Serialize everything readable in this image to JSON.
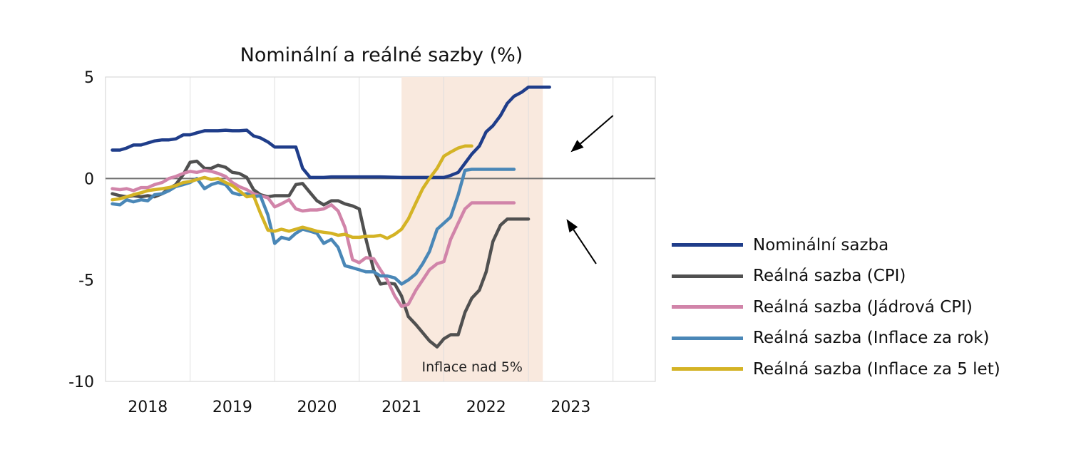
{
  "chart_data": {
    "type": "line",
    "title": "Nominální a reálné sazby (%)",
    "xlabel": "",
    "ylabel": "",
    "xlim": [
      2017.5,
      2024.0
    ],
    "ylim": [
      -10,
      5
    ],
    "y_ticks": [
      5,
      0,
      -5,
      -10
    ],
    "y_tick_labels": [
      "5",
      "0",
      "-5",
      "-10"
    ],
    "x_ticks": [
      2018,
      2019,
      2020,
      2021,
      2022,
      2023
    ],
    "x_tick_labels": [
      "2018",
      "2019",
      "2020",
      "2021",
      "2022",
      "2023"
    ],
    "grid": "vertical",
    "legend_position": "right",
    "shaded_region": {
      "x_start": 2021.0,
      "x_end": 2022.67,
      "label": "Inflace nad 5%",
      "color": "#f9e9de"
    },
    "arrows": [
      {
        "from": [
          2023.5,
          3.1
        ],
        "to": [
          2023.0,
          1.3
        ]
      },
      {
        "from": [
          2023.3,
          -4.2
        ],
        "to": [
          2022.95,
          -2.0
        ]
      }
    ],
    "series": [
      {
        "name": "Nominální sazba",
        "color": "#1f3d8a",
        "x": [
          2017.58,
          2017.67,
          2017.75,
          2017.83,
          2017.92,
          2018.0,
          2018.08,
          2018.17,
          2018.25,
          2018.33,
          2018.42,
          2018.5,
          2018.58,
          2018.67,
          2018.75,
          2018.83,
          2018.92,
          2019.0,
          2019.08,
          2019.17,
          2019.25,
          2019.33,
          2019.42,
          2019.5,
          2019.58,
          2019.67,
          2019.75,
          2019.83,
          2019.92,
          2020.0,
          2020.08,
          2020.17,
          2020.25,
          2020.33,
          2020.5,
          2020.75,
          2021.0,
          2021.25,
          2021.5,
          2021.58,
          2021.67,
          2021.75,
          2021.83,
          2021.92,
          2022.0,
          2022.08,
          2022.17,
          2022.25,
          2022.33,
          2022.42,
          2022.5,
          2022.58,
          2022.67,
          2022.75
        ],
        "y": [
          1.4,
          1.4,
          1.5,
          1.65,
          1.65,
          1.75,
          1.85,
          1.9,
          1.9,
          1.95,
          2.15,
          2.15,
          2.25,
          2.35,
          2.35,
          2.35,
          2.38,
          2.35,
          2.35,
          2.38,
          2.1,
          2.0,
          1.8,
          1.55,
          1.55,
          1.55,
          1.55,
          0.5,
          0.05,
          0.05,
          0.05,
          0.08,
          0.08,
          0.08,
          0.08,
          0.08,
          0.05,
          0.05,
          0.05,
          0.15,
          0.3,
          0.75,
          1.2,
          1.6,
          2.3,
          2.6,
          3.1,
          3.7,
          4.05,
          4.25,
          4.5,
          4.5,
          4.5,
          4.5
        ]
      },
      {
        "name": "Reálná sazba (CPI)",
        "color": "#505050",
        "x": [
          2017.58,
          2017.67,
          2017.75,
          2017.83,
          2017.92,
          2018.0,
          2018.08,
          2018.17,
          2018.25,
          2018.33,
          2018.42,
          2018.5,
          2018.58,
          2018.67,
          2018.75,
          2018.83,
          2018.92,
          2019.0,
          2019.08,
          2019.17,
          2019.25,
          2019.33,
          2019.42,
          2019.5,
          2019.58,
          2019.67,
          2019.75,
          2019.83,
          2019.92,
          2020.0,
          2020.08,
          2020.17,
          2020.25,
          2020.33,
          2020.42,
          2020.5,
          2020.58,
          2020.67,
          2020.75,
          2020.83,
          2020.92,
          2021.0,
          2021.08,
          2021.17,
          2021.25,
          2021.33,
          2021.42,
          2021.5,
          2021.58,
          2021.67,
          2021.75,
          2021.83,
          2021.92,
          2022.0,
          2022.08,
          2022.17,
          2022.25,
          2022.33,
          2022.42,
          2022.5
        ],
        "y": [
          -0.75,
          -0.85,
          -0.9,
          -0.85,
          -0.9,
          -0.85,
          -0.9,
          -0.75,
          -0.5,
          -0.3,
          0.2,
          0.8,
          0.85,
          0.5,
          0.5,
          0.65,
          0.55,
          0.3,
          0.25,
          0.05,
          -0.55,
          -0.8,
          -0.9,
          -0.85,
          -0.85,
          -0.85,
          -0.3,
          -0.25,
          -0.7,
          -1.1,
          -1.3,
          -1.1,
          -1.1,
          -1.25,
          -1.35,
          -1.5,
          -3.0,
          -4.5,
          -5.2,
          -5.15,
          -5.2,
          -5.8,
          -6.8,
          -7.2,
          -7.6,
          -8.0,
          -8.3,
          -7.9,
          -7.7,
          -7.7,
          -6.6,
          -5.9,
          -5.5,
          -4.6,
          -3.1,
          -2.3,
          -2.0,
          -2.0,
          -2.0,
          -2.0
        ]
      },
      {
        "name": "Reálná sazba (Jádrová CPI)",
        "color": "#d184a9",
        "x": [
          2017.58,
          2017.67,
          2017.75,
          2017.83,
          2017.92,
          2018.0,
          2018.08,
          2018.17,
          2018.25,
          2018.33,
          2018.42,
          2018.5,
          2018.58,
          2018.67,
          2018.75,
          2018.83,
          2018.92,
          2019.0,
          2019.08,
          2019.17,
          2019.25,
          2019.33,
          2019.42,
          2019.5,
          2019.58,
          2019.67,
          2019.75,
          2019.83,
          2019.92,
          2020.0,
          2020.08,
          2020.17,
          2020.25,
          2020.33,
          2020.42,
          2020.5,
          2020.58,
          2020.67,
          2020.75,
          2020.83,
          2020.92,
          2021.0,
          2021.08,
          2021.17,
          2021.25,
          2021.33,
          2021.42,
          2021.5,
          2021.58,
          2021.67,
          2021.75,
          2021.83,
          2021.92,
          2022.0,
          2022.08,
          2022.17,
          2022.25,
          2022.33
        ],
        "y": [
          -0.5,
          -0.55,
          -0.5,
          -0.6,
          -0.45,
          -0.45,
          -0.3,
          -0.2,
          0.0,
          0.1,
          0.25,
          0.35,
          0.3,
          0.4,
          0.35,
          0.25,
          0.1,
          -0.2,
          -0.4,
          -0.55,
          -0.75,
          -0.85,
          -0.95,
          -1.4,
          -1.25,
          -1.05,
          -1.5,
          -1.6,
          -1.55,
          -1.55,
          -1.5,
          -1.3,
          -1.6,
          -2.4,
          -4.0,
          -4.15,
          -3.9,
          -3.95,
          -4.5,
          -5.0,
          -5.8,
          -6.3,
          -6.2,
          -5.5,
          -5.0,
          -4.5,
          -4.2,
          -4.1,
          -3.0,
          -2.2,
          -1.5,
          -1.2,
          -1.2,
          -1.2,
          -1.2,
          -1.2,
          -1.2,
          -1.2
        ]
      },
      {
        "name": "Reálná sazba (Inflace za rok)",
        "color": "#4a87b7",
        "x": [
          2017.58,
          2017.67,
          2017.75,
          2017.83,
          2017.92,
          2018.0,
          2018.08,
          2018.17,
          2018.25,
          2018.33,
          2018.42,
          2018.5,
          2018.58,
          2018.67,
          2018.75,
          2018.83,
          2018.92,
          2019.0,
          2019.08,
          2019.17,
          2019.25,
          2019.33,
          2019.42,
          2019.5,
          2019.58,
          2019.67,
          2019.75,
          2019.83,
          2019.92,
          2020.0,
          2020.08,
          2020.17,
          2020.25,
          2020.33,
          2020.42,
          2020.5,
          2020.58,
          2020.67,
          2020.75,
          2020.83,
          2020.92,
          2021.0,
          2021.08,
          2021.17,
          2021.25,
          2021.33,
          2021.42,
          2021.5,
          2021.58,
          2021.67,
          2021.75,
          2021.83,
          2021.92,
          2022.0,
          2022.08,
          2022.17,
          2022.25,
          2022.33
        ],
        "y": [
          -1.25,
          -1.3,
          -1.05,
          -1.15,
          -1.05,
          -1.1,
          -0.8,
          -0.75,
          -0.6,
          -0.4,
          -0.3,
          -0.2,
          0.0,
          -0.5,
          -0.3,
          -0.2,
          -0.3,
          -0.7,
          -0.8,
          -0.75,
          -0.9,
          -0.85,
          -1.8,
          -3.2,
          -2.9,
          -3.0,
          -2.7,
          -2.5,
          -2.6,
          -2.7,
          -3.2,
          -3.0,
          -3.4,
          -4.3,
          -4.4,
          -4.5,
          -4.6,
          -4.6,
          -4.8,
          -4.8,
          -4.9,
          -5.2,
          -5.0,
          -4.7,
          -4.2,
          -3.6,
          -2.5,
          -2.2,
          -1.9,
          -0.8,
          0.4,
          0.45,
          0.45,
          0.45,
          0.45,
          0.45,
          0.45,
          0.45
        ]
      },
      {
        "name": "Reálná sazba (Inflace za 5 let)",
        "color": "#d4b325",
        "x": [
          2017.58,
          2017.67,
          2017.75,
          2017.83,
          2017.92,
          2018.0,
          2018.08,
          2018.17,
          2018.25,
          2018.33,
          2018.42,
          2018.5,
          2018.58,
          2018.67,
          2018.75,
          2018.83,
          2018.92,
          2019.0,
          2019.08,
          2019.17,
          2019.25,
          2019.33,
          2019.42,
          2019.5,
          2019.58,
          2019.67,
          2019.75,
          2019.83,
          2019.92,
          2020.0,
          2020.08,
          2020.17,
          2020.25,
          2020.33,
          2020.42,
          2020.5,
          2020.58,
          2020.67,
          2020.75,
          2020.83,
          2020.92,
          2021.0,
          2021.08,
          2021.17,
          2021.25,
          2021.33,
          2021.42,
          2021.5,
          2021.58,
          2021.67,
          2021.75,
          2021.83
        ],
        "y": [
          -1.05,
          -1.0,
          -0.9,
          -0.8,
          -0.7,
          -0.6,
          -0.55,
          -0.5,
          -0.45,
          -0.35,
          -0.2,
          -0.15,
          -0.05,
          0.05,
          -0.05,
          0.0,
          -0.2,
          -0.35,
          -0.6,
          -0.9,
          -0.85,
          -1.7,
          -2.55,
          -2.6,
          -2.5,
          -2.6,
          -2.5,
          -2.4,
          -2.5,
          -2.6,
          -2.65,
          -2.7,
          -2.8,
          -2.75,
          -2.9,
          -2.9,
          -2.85,
          -2.85,
          -2.8,
          -2.95,
          -2.75,
          -2.5,
          -2.0,
          -1.2,
          -0.5,
          0.0,
          0.5,
          1.1,
          1.3,
          1.5,
          1.6,
          1.6
        ]
      }
    ]
  }
}
